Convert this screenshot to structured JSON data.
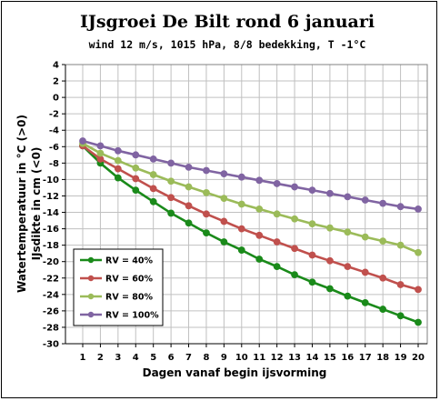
{
  "chart_data": {
    "type": "line",
    "title": "IJsgroei De Bilt rond 6 januari",
    "subtitle": "wind 12 m/s, 1015 hPa, 8/8 bedekking, T -1°C",
    "xlabel": "Dagen vanaf begin ijsvorming",
    "ylabel_line1": "Watertemperatuur in °C (>0)",
    "ylabel_line2": "IJsdikte in cm (<0)",
    "xlim": [
      1,
      20
    ],
    "ylim": [
      -30,
      4
    ],
    "x_ticks": [
      1,
      2,
      3,
      4,
      5,
      6,
      7,
      8,
      9,
      10,
      11,
      12,
      13,
      14,
      15,
      16,
      17,
      18,
      19,
      20
    ],
    "y_ticks": [
      4,
      2,
      0,
      -2,
      -4,
      -6,
      -8,
      -10,
      -12,
      -14,
      -16,
      -18,
      -20,
      -22,
      -24,
      -26,
      -28,
      -30
    ],
    "grid": true,
    "legend_position": "bottom-left",
    "x": [
      1,
      2,
      3,
      4,
      5,
      6,
      7,
      8,
      9,
      10,
      11,
      12,
      13,
      14,
      15,
      16,
      17,
      18,
      19,
      20
    ],
    "series": [
      {
        "name": "RV = 40%",
        "color": "#1a8a1a",
        "values": [
          -5.9,
          -8.0,
          -9.8,
          -11.3,
          -12.7,
          -14.1,
          -15.3,
          -16.5,
          -17.6,
          -18.6,
          -19.7,
          -20.6,
          -21.6,
          -22.5,
          -23.3,
          -24.2,
          -25.0,
          -25.8,
          -26.6,
          -27.4
        ]
      },
      {
        "name": "RV = 60%",
        "color": "#c0504d",
        "values": [
          -5.9,
          -7.5,
          -8.7,
          -9.9,
          -11.1,
          -12.2,
          -13.2,
          -14.2,
          -15.1,
          -16.0,
          -16.8,
          -17.6,
          -18.4,
          -19.2,
          -19.9,
          -20.6,
          -21.3,
          -22.0,
          -22.8,
          -23.4
        ]
      },
      {
        "name": "RV = 80%",
        "color": "#9bbb59",
        "values": [
          -5.6,
          -6.8,
          -7.7,
          -8.6,
          -9.4,
          -10.2,
          -10.9,
          -11.6,
          -12.3,
          -13.0,
          -13.6,
          -14.2,
          -14.8,
          -15.4,
          -15.9,
          -16.4,
          -17.0,
          -17.5,
          -18.0,
          -18.9
        ]
      },
      {
        "name": "RV = 100%",
        "color": "#8064a2",
        "values": [
          -5.3,
          -5.9,
          -6.5,
          -7.0,
          -7.5,
          -8.0,
          -8.5,
          -8.9,
          -9.3,
          -9.7,
          -10.1,
          -10.5,
          -10.9,
          -11.3,
          -11.7,
          -12.1,
          -12.5,
          -12.9,
          -13.3,
          -13.6
        ]
      }
    ]
  }
}
